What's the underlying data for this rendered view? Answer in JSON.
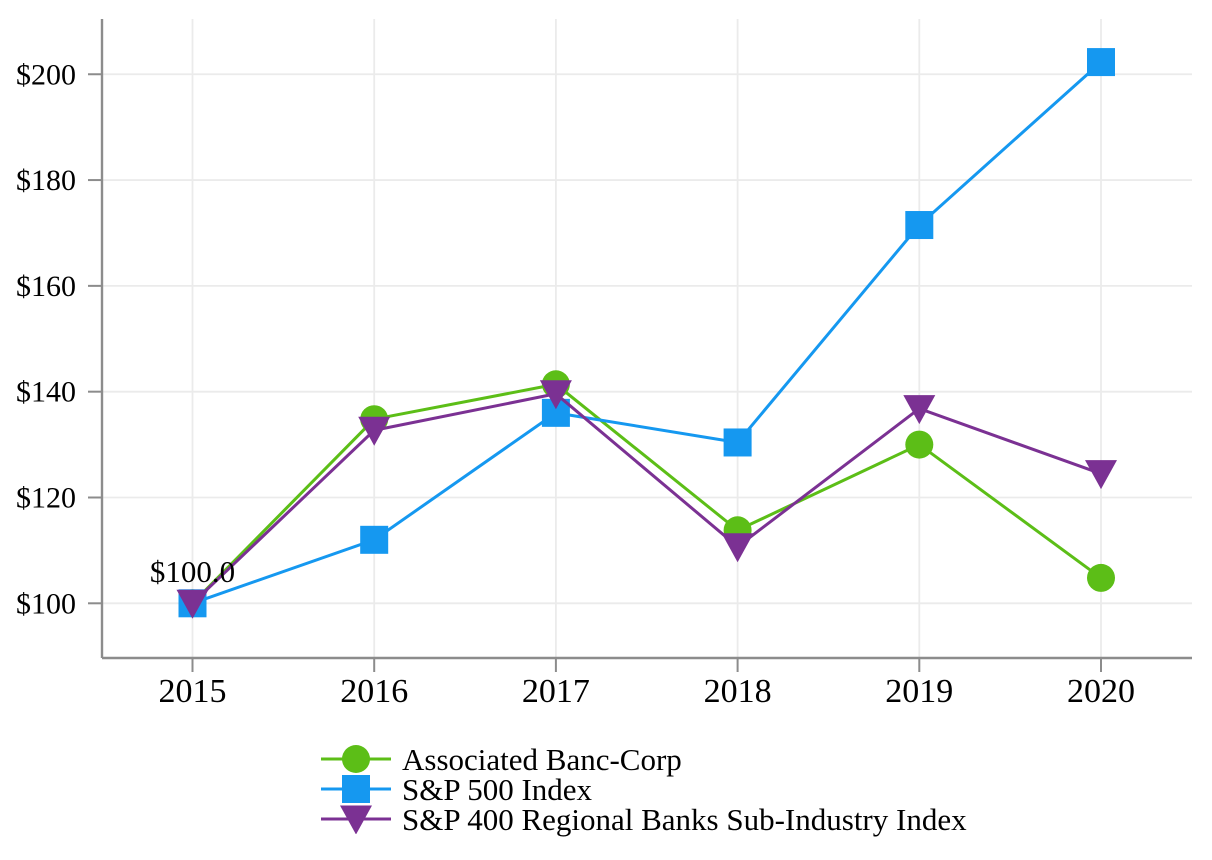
{
  "chart_data": {
    "type": "line",
    "title": "",
    "x_categories": [
      "2015",
      "2016",
      "2017",
      "2018",
      "2019",
      "2020"
    ],
    "y_ticks": [
      {
        "value": 100,
        "label": "$100"
      },
      {
        "value": 120,
        "label": "$120"
      },
      {
        "value": 140,
        "label": "$140"
      },
      {
        "value": 160,
        "label": "$160"
      },
      {
        "value": 180,
        "label": "$180"
      },
      {
        "value": 200,
        "label": "$200"
      }
    ],
    "ylim": [
      89,
      211
    ],
    "grid": true,
    "legend_position": "bottom-left",
    "annotation": {
      "text": "$100.0",
      "x": "2015",
      "y": 100
    },
    "series": [
      {
        "name": "Associated Banc-Corp",
        "marker": "circle",
        "color": "#5CBE17",
        "values": [
          100.0,
          134.8,
          141.4,
          113.8,
          130.0,
          104.8
        ]
      },
      {
        "name": "S&P 500 Index",
        "marker": "square",
        "color": "#1598F0",
        "values": [
          100.0,
          112.0,
          136.0,
          130.4,
          171.5,
          202.3
        ]
      },
      {
        "name": "S&P 400 Regional Banks Sub-Industry Index",
        "marker": "triangle-down",
        "color": "#7B3193",
        "values": [
          100.0,
          132.7,
          139.6,
          110.7,
          136.8,
          124.5
        ]
      }
    ],
    "axis_color": "#8C8C8C",
    "grid_color": "#EBEBEB",
    "text_color": "#000000"
  }
}
